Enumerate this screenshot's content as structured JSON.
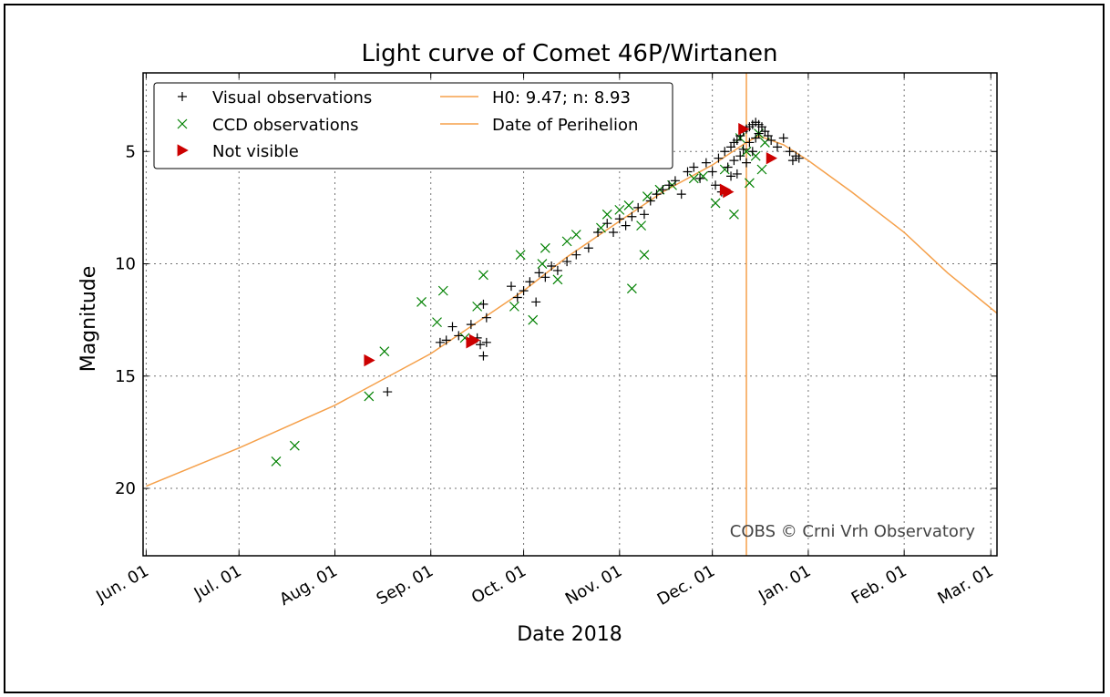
{
  "chart_data": {
    "type": "scatter",
    "title": "Light curve of Comet 46P/Wirtanen",
    "xlabel": "Date 2018",
    "ylabel": "Magnitude",
    "x_ticks": [
      "Jun. 01",
      "Jul. 01",
      "Aug. 01",
      "Sep. 01",
      "Oct. 01",
      "Nov. 01",
      "Dec. 01",
      "Jan. 01",
      "Feb. 01",
      "Mar. 01"
    ],
    "x_tick_dates": [
      "2018-06-01",
      "2018-07-01",
      "2018-08-01",
      "2018-09-01",
      "2018-10-01",
      "2018-11-01",
      "2018-12-01",
      "2019-01-01",
      "2019-02-01",
      "2019-03-01"
    ],
    "xlim": [
      "2018-05-31",
      "2019-03-03"
    ],
    "y_ticks": [
      5,
      10,
      15,
      20
    ],
    "ylim": [
      1.5,
      23
    ],
    "y_inverted": true,
    "grid": true,
    "legend_position": "top-left",
    "annotation": "COBS © Crni Vrh Observatory",
    "colors": {
      "visual": "#000000",
      "ccd": "#008000",
      "not_visible": "#cc0000",
      "model": "#f5a04a",
      "perihelion": "#f5a04a"
    },
    "model": {
      "name": "H0: 9.47; n: 8.93",
      "H0": 9.47,
      "n": 8.93
    },
    "perihelion": {
      "name": "Date of Perihelion",
      "date": "2018-12-12"
    },
    "model_curve": [
      [
        "2018-06-01",
        19.9
      ],
      [
        "2018-07-01",
        18.2
      ],
      [
        "2018-08-01",
        16.3
      ],
      [
        "2018-09-01",
        14.0
      ],
      [
        "2018-10-01",
        11.2
      ],
      [
        "2018-10-15",
        9.7
      ],
      [
        "2018-11-01",
        8.1
      ],
      [
        "2018-11-15",
        6.8
      ],
      [
        "2018-12-01",
        5.6
      ],
      [
        "2018-12-12",
        4.6
      ],
      [
        "2018-12-16",
        4.3
      ],
      [
        "2018-12-24",
        4.7
      ],
      [
        "2019-01-01",
        5.4
      ],
      [
        "2019-01-15",
        6.8
      ],
      [
        "2019-02-01",
        8.6
      ],
      [
        "2019-02-15",
        10.4
      ],
      [
        "2019-03-03",
        12.2
      ]
    ],
    "series": [
      {
        "name": "Visual observations",
        "marker": "plus",
        "points": [
          [
            "2018-08-18",
            15.7
          ],
          [
            "2018-09-04",
            13.5
          ],
          [
            "2018-09-06",
            13.4
          ],
          [
            "2018-09-08",
            12.8
          ],
          [
            "2018-09-10",
            13.2
          ],
          [
            "2018-09-14",
            12.7
          ],
          [
            "2018-09-16",
            13.3
          ],
          [
            "2018-09-17",
            13.6
          ],
          [
            "2018-09-18",
            14.1
          ],
          [
            "2018-09-18",
            11.8
          ],
          [
            "2018-09-19",
            12.4
          ],
          [
            "2018-09-19",
            13.5
          ],
          [
            "2018-09-27",
            11.0
          ],
          [
            "2018-09-29",
            11.5
          ],
          [
            "2018-10-01",
            11.2
          ],
          [
            "2018-10-03",
            10.8
          ],
          [
            "2018-10-05",
            11.7
          ],
          [
            "2018-10-06",
            10.4
          ],
          [
            "2018-10-08",
            10.6
          ],
          [
            "2018-10-10",
            10.1
          ],
          [
            "2018-10-12",
            10.3
          ],
          [
            "2018-10-15",
            9.9
          ],
          [
            "2018-10-18",
            9.6
          ],
          [
            "2018-10-22",
            9.3
          ],
          [
            "2018-10-25",
            8.6
          ],
          [
            "2018-10-28",
            8.2
          ],
          [
            "2018-10-30",
            8.6
          ],
          [
            "2018-11-01",
            8.0
          ],
          [
            "2018-11-03",
            8.3
          ],
          [
            "2018-11-05",
            7.9
          ],
          [
            "2018-11-07",
            7.5
          ],
          [
            "2018-11-09",
            7.8
          ],
          [
            "2018-11-11",
            7.2
          ],
          [
            "2018-11-13",
            6.9
          ],
          [
            "2018-11-15",
            6.7
          ],
          [
            "2018-11-17",
            6.5
          ],
          [
            "2018-11-19",
            6.3
          ],
          [
            "2018-11-21",
            6.9
          ],
          [
            "2018-11-23",
            5.9
          ],
          [
            "2018-11-25",
            5.7
          ],
          [
            "2018-11-27",
            6.2
          ],
          [
            "2018-11-29",
            5.5
          ],
          [
            "2018-12-01",
            5.9
          ],
          [
            "2018-12-02",
            6.5
          ],
          [
            "2018-12-03",
            5.3
          ],
          [
            "2018-12-04",
            6.8
          ],
          [
            "2018-12-05",
            5.0
          ],
          [
            "2018-12-06",
            5.7
          ],
          [
            "2018-12-07",
            4.8
          ],
          [
            "2018-12-07",
            6.1
          ],
          [
            "2018-12-08",
            4.6
          ],
          [
            "2018-12-08",
            5.4
          ],
          [
            "2018-12-09",
            4.5
          ],
          [
            "2018-12-09",
            6.0
          ],
          [
            "2018-12-10",
            4.3
          ],
          [
            "2018-12-10",
            5.2
          ],
          [
            "2018-12-11",
            4.1
          ],
          [
            "2018-12-11",
            4.9
          ],
          [
            "2018-12-12",
            4.0
          ],
          [
            "2018-12-12",
            5.5
          ],
          [
            "2018-12-13",
            3.9
          ],
          [
            "2018-12-13",
            4.6
          ],
          [
            "2018-12-14",
            3.8
          ],
          [
            "2018-12-14",
            5.0
          ],
          [
            "2018-12-15",
            3.7
          ],
          [
            "2018-12-15",
            4.4
          ],
          [
            "2018-12-16",
            3.8
          ],
          [
            "2018-12-16",
            4.2
          ],
          [
            "2018-12-17",
            3.9
          ],
          [
            "2018-12-18",
            4.1
          ],
          [
            "2018-12-19",
            4.3
          ],
          [
            "2018-12-20",
            4.5
          ],
          [
            "2018-12-22",
            4.8
          ],
          [
            "2018-12-24",
            4.4
          ],
          [
            "2018-12-26",
            5.0
          ],
          [
            "2018-12-27",
            5.4
          ],
          [
            "2018-12-28",
            5.2
          ],
          [
            "2018-12-29",
            5.3
          ]
        ]
      },
      {
        "name": "CCD observations",
        "marker": "x",
        "points": [
          [
            "2018-07-13",
            18.8
          ],
          [
            "2018-07-19",
            18.1
          ],
          [
            "2018-08-12",
            15.9
          ],
          [
            "2018-08-17",
            13.9
          ],
          [
            "2018-08-29",
            11.7
          ],
          [
            "2018-09-03",
            12.6
          ],
          [
            "2018-09-05",
            11.2
          ],
          [
            "2018-09-12",
            13.3
          ],
          [
            "2018-09-16",
            11.9
          ],
          [
            "2018-09-18",
            10.5
          ],
          [
            "2018-09-28",
            11.9
          ],
          [
            "2018-09-30",
            9.6
          ],
          [
            "2018-10-04",
            12.5
          ],
          [
            "2018-10-07",
            10.0
          ],
          [
            "2018-10-08",
            9.3
          ],
          [
            "2018-10-12",
            10.7
          ],
          [
            "2018-10-15",
            9.0
          ],
          [
            "2018-10-18",
            8.7
          ],
          [
            "2018-10-26",
            8.4
          ],
          [
            "2018-10-28",
            7.8
          ],
          [
            "2018-11-01",
            7.6
          ],
          [
            "2018-11-04",
            7.4
          ],
          [
            "2018-11-05",
            11.1
          ],
          [
            "2018-11-08",
            8.3
          ],
          [
            "2018-11-09",
            9.6
          ],
          [
            "2018-11-10",
            7.0
          ],
          [
            "2018-11-14",
            6.7
          ],
          [
            "2018-11-18",
            6.5
          ],
          [
            "2018-11-25",
            6.2
          ],
          [
            "2018-11-28",
            6.1
          ],
          [
            "2018-12-02",
            7.3
          ],
          [
            "2018-12-05",
            5.8
          ],
          [
            "2018-12-08",
            7.8
          ],
          [
            "2018-12-10",
            4.4
          ],
          [
            "2018-12-12",
            5.0
          ],
          [
            "2018-12-13",
            6.4
          ],
          [
            "2018-12-15",
            5.2
          ],
          [
            "2018-12-16",
            4.2
          ],
          [
            "2018-12-17",
            5.8
          ],
          [
            "2018-12-18",
            4.6
          ]
        ]
      },
      {
        "name": "Not visible",
        "marker": "triangle-right",
        "points": [
          [
            "2018-08-12",
            14.3
          ],
          [
            "2018-09-14",
            13.5
          ],
          [
            "2018-09-15",
            13.4
          ],
          [
            "2018-12-05",
            6.7
          ],
          [
            "2018-12-06",
            6.8
          ],
          [
            "2018-12-11",
            4.0
          ],
          [
            "2018-12-20",
            5.3
          ]
        ]
      }
    ]
  }
}
